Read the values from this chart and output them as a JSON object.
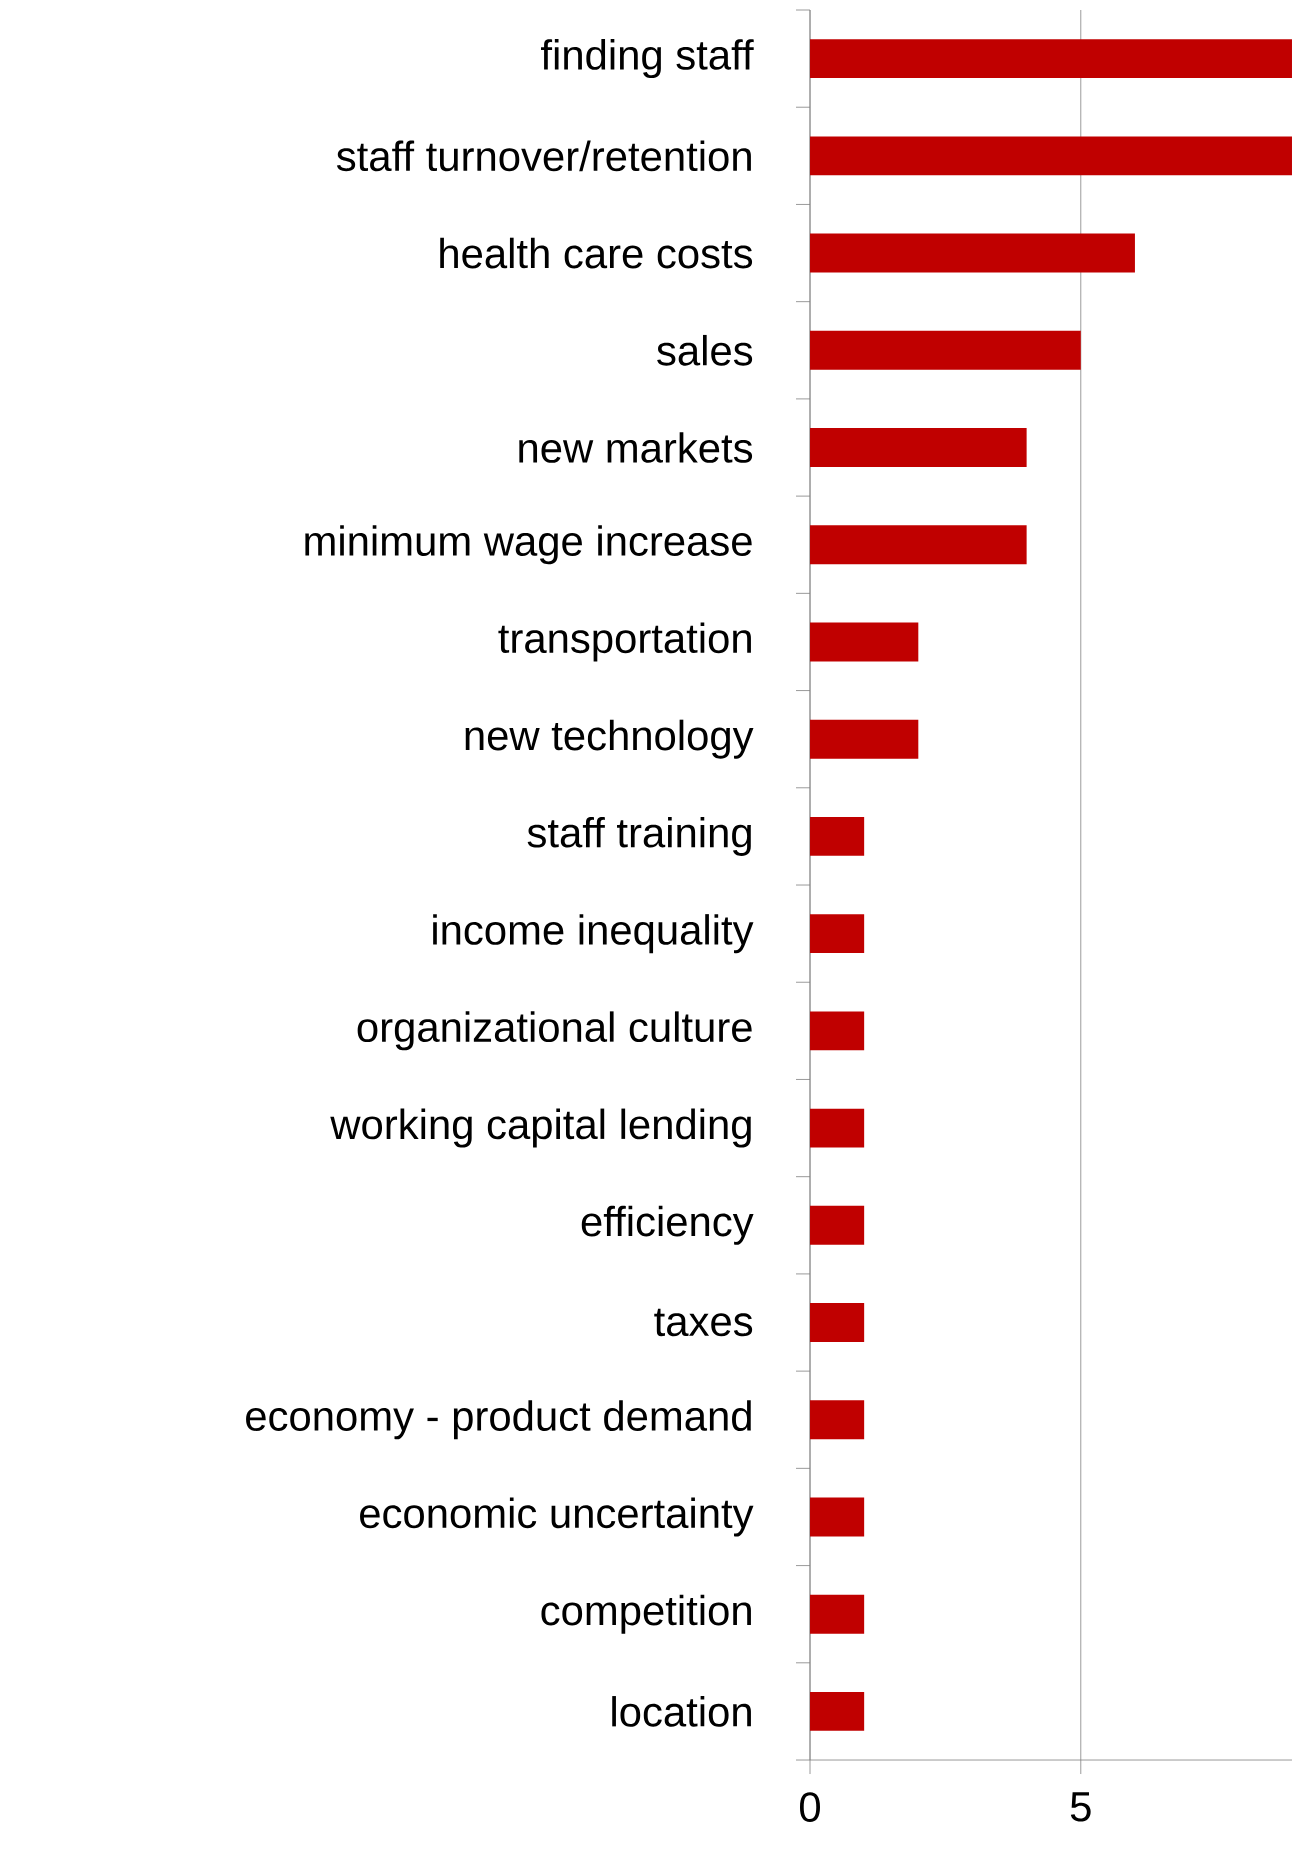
{
  "chart_data": {
    "type": "bar",
    "orientation": "horizontal",
    "categories": [
      "finding staff",
      "staff turnover/retention",
      "health care costs",
      "sales",
      "new markets",
      "minimum wage increase",
      "transportation",
      "new technology",
      "staff training",
      "income inequality",
      "organizational culture",
      "working capital lending",
      "efficiency",
      "taxes",
      "economy - product demand",
      "economic uncertainty",
      "competition",
      "location"
    ],
    "values": [
      8.9,
      8.9,
      6,
      5,
      4,
      4,
      2,
      2,
      1,
      1,
      1,
      1,
      1,
      1,
      1,
      1,
      1,
      1
    ],
    "color": "#c00000",
    "xlim": [
      0,
      8.9
    ],
    "xticks": [
      0,
      5
    ],
    "grid": "x"
  }
}
